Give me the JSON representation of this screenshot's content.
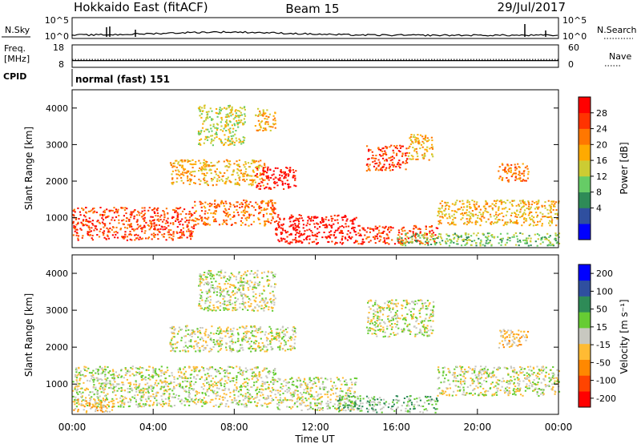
{
  "header": {
    "site": "Hokkaido East (fitACF)",
    "beam": "Beam 15",
    "date": "29/Jul/2017"
  },
  "noise_panel": {
    "left_label": "N.Sky",
    "right_label": "N.Search",
    "left_ticks": [
      "10^5",
      "10^0"
    ],
    "right_ticks": [
      "10^5",
      "10^0"
    ]
  },
  "freq_panel": {
    "left_label_1": "Freq.",
    "left_label_2": "[MHz]",
    "right_label": "Nave",
    "left_ticks": [
      "18",
      "8"
    ],
    "right_ticks": [
      "60",
      "0"
    ],
    "freq_level": 11,
    "nave_level": 21
  },
  "cpid": {
    "label": "CPID",
    "mode": "normal (fast) 151"
  },
  "colors": {
    "power": [
      "#0000ff",
      "#2f4f9f",
      "#2e8b57",
      "#66cc66",
      "#cccc33",
      "#ffaa00",
      "#ff7700",
      "#ff3300",
      "#ff0000"
    ],
    "velocity": [
      "#ff0000",
      "#ff4400",
      "#ff8800",
      "#ffbb33",
      "#c8c8c0",
      "#66cc33",
      "#2e8b57",
      "#2f4f9f",
      "#0000ff"
    ]
  },
  "chart_data": [
    {
      "type": "heatmap",
      "quantity": "power",
      "ylabel": "Slant Range [km]",
      "yticks": [
        1000,
        2000,
        3000,
        4000
      ],
      "ylim": [
        180,
        4500
      ],
      "xlim": [
        0,
        24
      ],
      "colorbar_label": "Power [dB]",
      "colorbar_ticks": [
        "28",
        "24",
        "20",
        "16",
        "12",
        "8",
        "4"
      ],
      "echo_regions": [
        {
          "t0": 0.0,
          "t1": 6.0,
          "r0": 400,
          "r1": 1300,
          "level": 7
        },
        {
          "t0": 6.0,
          "t1": 10.0,
          "r0": 800,
          "r1": 1500,
          "level": 6
        },
        {
          "t0": 10.0,
          "t1": 14.0,
          "r0": 300,
          "r1": 1100,
          "level": 8
        },
        {
          "t0": 14.0,
          "t1": 18.0,
          "r0": 300,
          "r1": 800,
          "level": 7
        },
        {
          "t0": 18.0,
          "t1": 24.0,
          "r0": 800,
          "r1": 1500,
          "level": 5
        },
        {
          "t0": 16.0,
          "t1": 24.0,
          "r0": 250,
          "r1": 600,
          "level": 3
        },
        {
          "t0": 4.8,
          "t1": 9.5,
          "r0": 1900,
          "r1": 2600,
          "level": 5
        },
        {
          "t0": 9.0,
          "t1": 11.0,
          "r0": 1800,
          "r1": 2400,
          "level": 8
        },
        {
          "t0": 14.5,
          "t1": 16.5,
          "r0": 2300,
          "r1": 3000,
          "level": 7
        },
        {
          "t0": 16.5,
          "t1": 17.8,
          "r0": 2600,
          "r1": 3300,
          "level": 5
        },
        {
          "t0": 21.0,
          "t1": 22.5,
          "r0": 2000,
          "r1": 2500,
          "level": 6
        },
        {
          "t0": 6.2,
          "t1": 8.5,
          "r0": 3000,
          "r1": 4100,
          "level": 4
        },
        {
          "t0": 9.0,
          "t1": 10.0,
          "r0": 3400,
          "r1": 4000,
          "level": 5
        }
      ]
    },
    {
      "type": "heatmap",
      "quantity": "velocity",
      "ylabel": "Slant Range [km]",
      "yticks": [
        1000,
        2000,
        3000,
        4000
      ],
      "ylim": [
        180,
        4500
      ],
      "xlim": [
        0,
        24
      ],
      "xlabel": "Time UT",
      "xticks": [
        "00:00",
        "04:00",
        "08:00",
        "12:00",
        "16:00",
        "20:00",
        "00:00"
      ],
      "colorbar_label": "Velocity [m s⁻¹]",
      "colorbar_ticks": [
        "200",
        "100",
        "50",
        "15",
        "-15",
        "-50",
        "-100",
        "-200"
      ],
      "echo_regions": [
        {
          "t0": 0.0,
          "t1": 10.0,
          "r0": 400,
          "r1": 1500,
          "level": 4
        },
        {
          "t0": 10.0,
          "t1": 14.0,
          "r0": 300,
          "r1": 1200,
          "level": 4
        },
        {
          "t0": 13.0,
          "t1": 18.0,
          "r0": 250,
          "r1": 700,
          "level": 5
        },
        {
          "t0": 18.0,
          "t1": 24.0,
          "r0": 700,
          "r1": 1500,
          "level": 4
        },
        {
          "t0": 0.0,
          "t1": 2.0,
          "r0": 250,
          "r1": 600,
          "level": 3
        },
        {
          "t0": 4.8,
          "t1": 11.0,
          "r0": 1900,
          "r1": 2600,
          "level": 4
        },
        {
          "t0": 14.5,
          "t1": 17.8,
          "r0": 2300,
          "r1": 3300,
          "level": 4
        },
        {
          "t0": 21.0,
          "t1": 22.5,
          "r0": 2000,
          "r1": 2500,
          "level": 3
        },
        {
          "t0": 6.2,
          "t1": 10.0,
          "r0": 3000,
          "r1": 4100,
          "level": 4
        }
      ]
    }
  ]
}
